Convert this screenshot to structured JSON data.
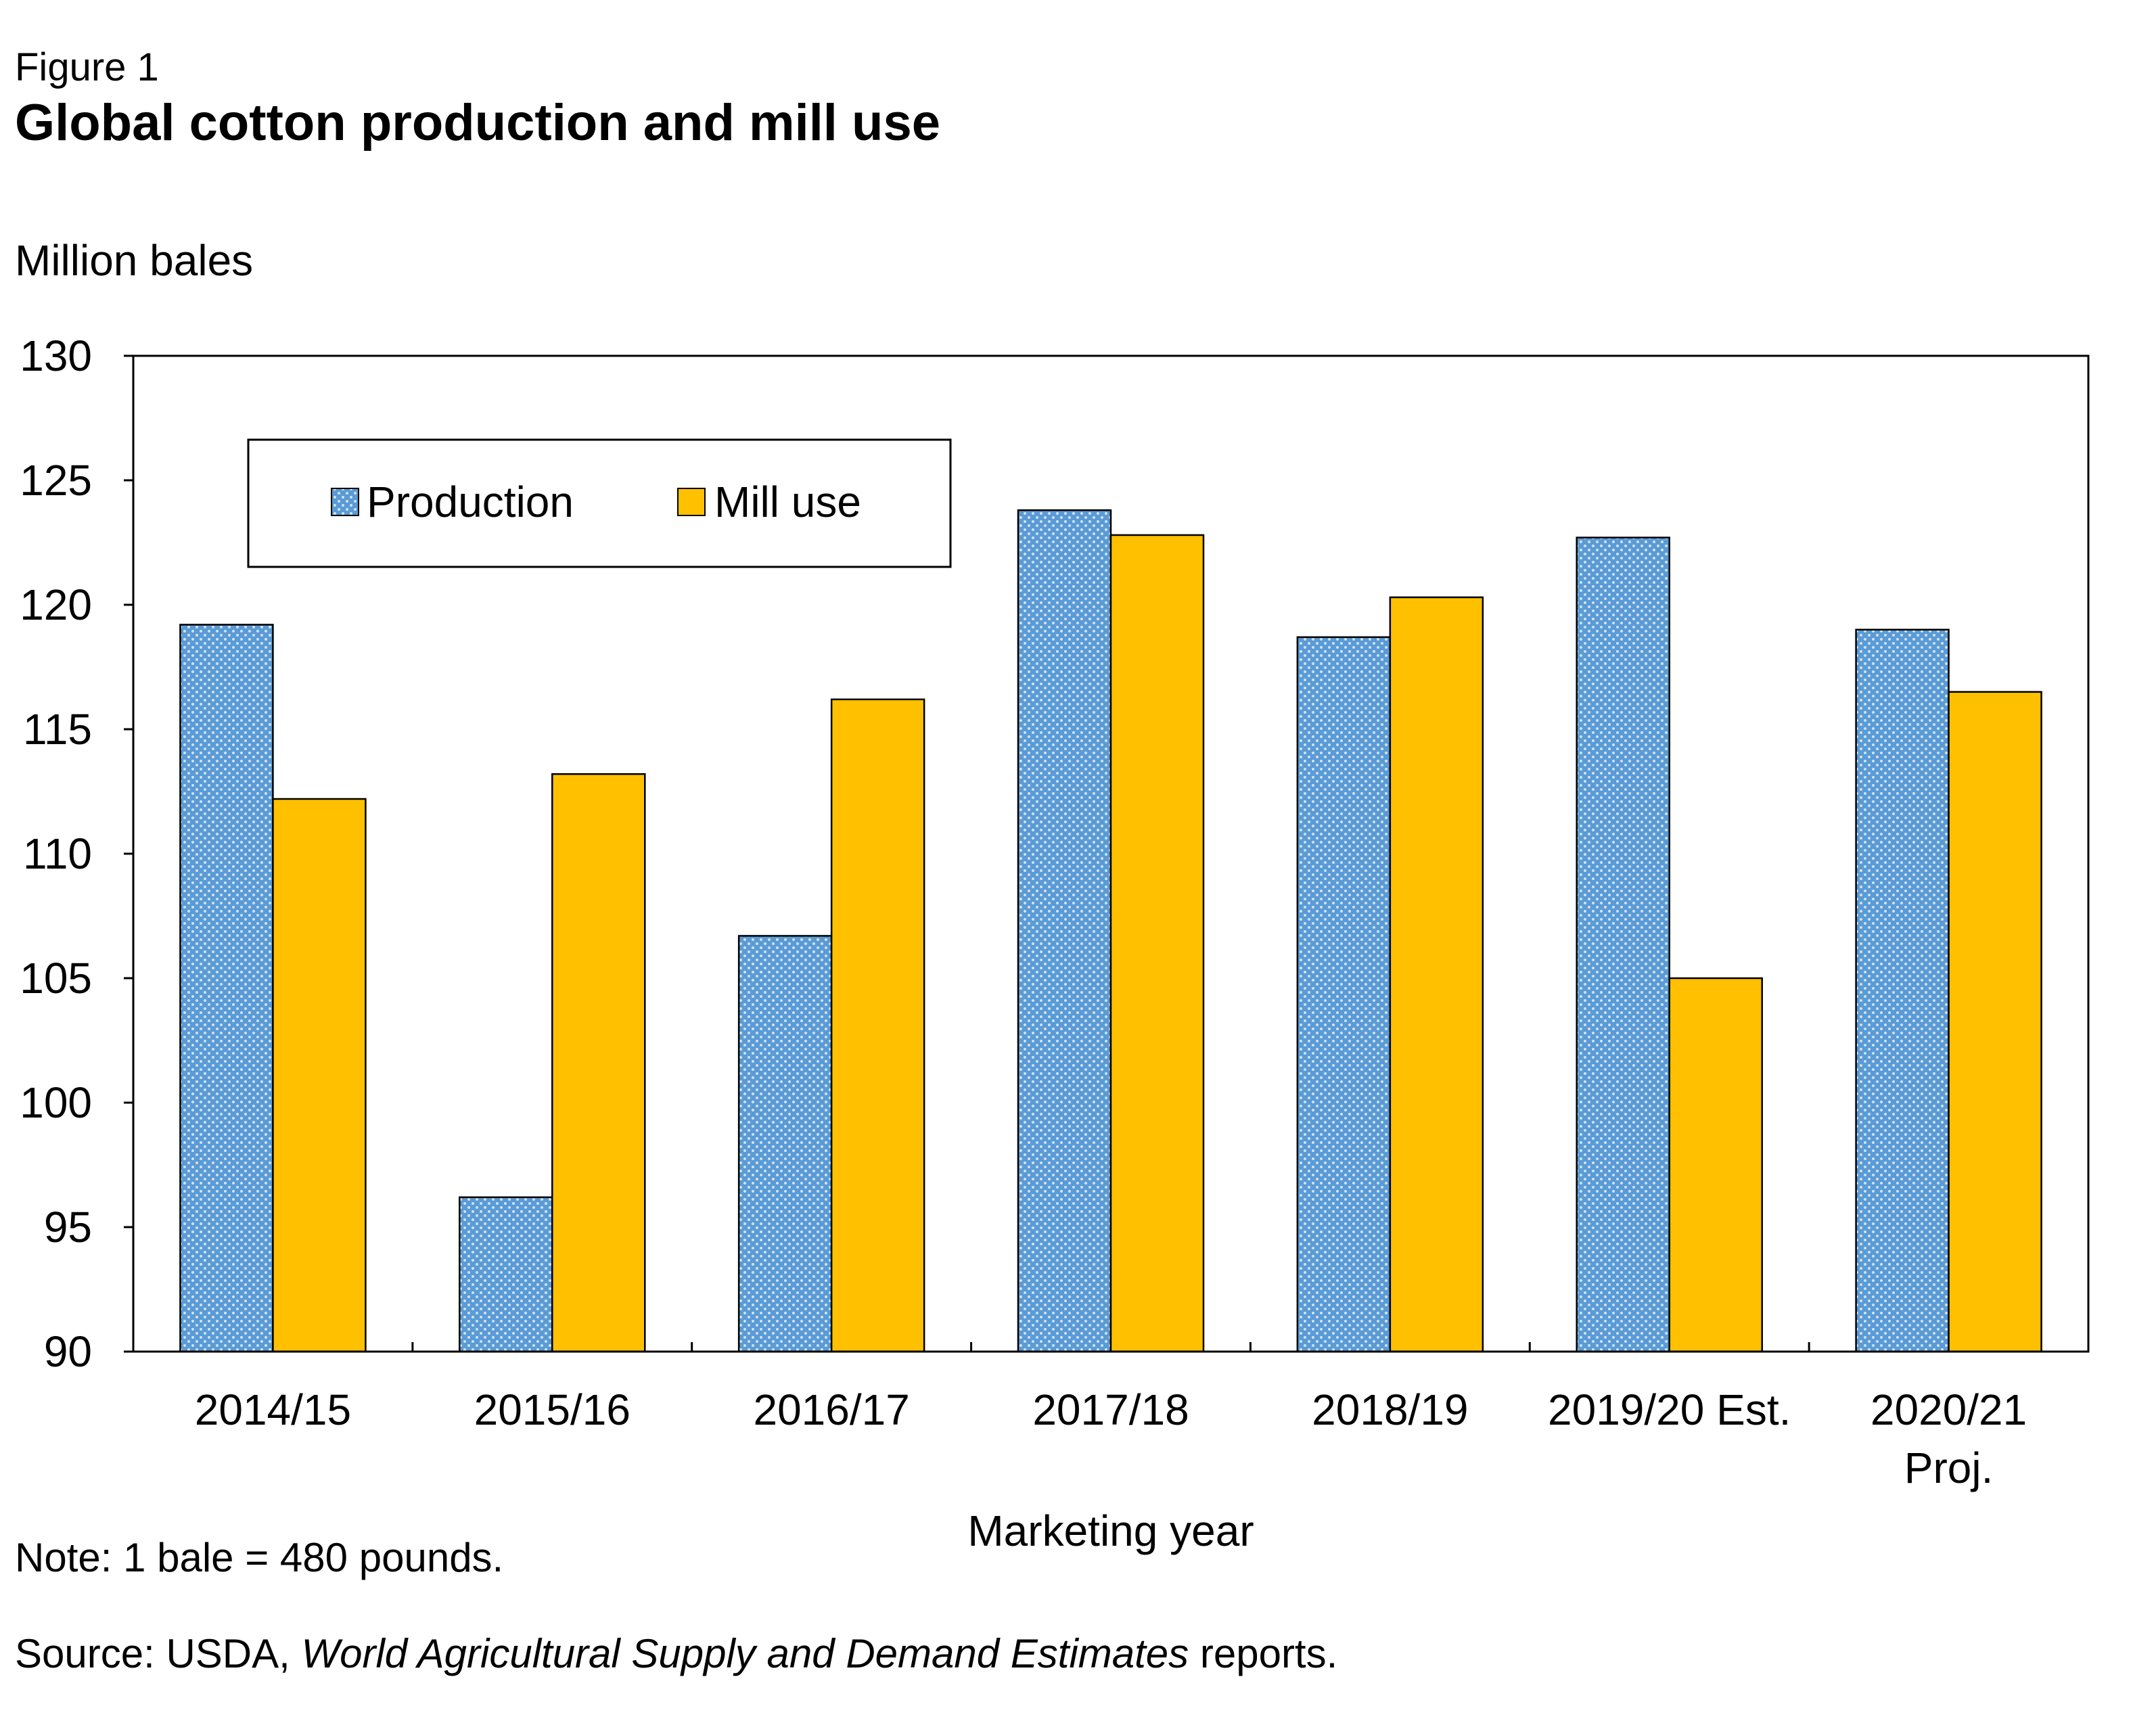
{
  "figure_label": "Figure 1",
  "title": "Global cotton production and mill use",
  "note": "Note: 1 bale = 480 pounds.",
  "source": {
    "prefix": "Source: USDA, ",
    "publication": "World Agricultural Supply and Demand Estimates",
    "suffix": " reports."
  },
  "colors": {
    "production": "#5b9bd5",
    "production_dots": "#cfe3f5",
    "mill_use": "#ffc000",
    "axis": "#000000"
  },
  "chart_data": {
    "type": "bar",
    "title": "Global cotton production and mill use",
    "ylabel": "Million bales",
    "xlabel": "Marketing year",
    "ylim": [
      90,
      130
    ],
    "yticks": [
      90,
      95,
      100,
      105,
      110,
      115,
      120,
      125,
      130
    ],
    "grid": false,
    "legend": "top-left",
    "categories": [
      [
        "2014/15"
      ],
      [
        "2015/16"
      ],
      [
        "2016/17"
      ],
      [
        "2017/18"
      ],
      [
        "2018/19"
      ],
      [
        "2019/20 Est."
      ],
      [
        "2020/21",
        "Proj."
      ]
    ],
    "series": [
      {
        "name": "Production",
        "values": [
          119.2,
          96.2,
          106.7,
          123.8,
          118.7,
          122.7,
          119.0
        ]
      },
      {
        "name": "Mill use",
        "values": [
          112.2,
          113.2,
          116.2,
          122.8,
          120.3,
          105.0,
          116.5
        ]
      }
    ]
  }
}
